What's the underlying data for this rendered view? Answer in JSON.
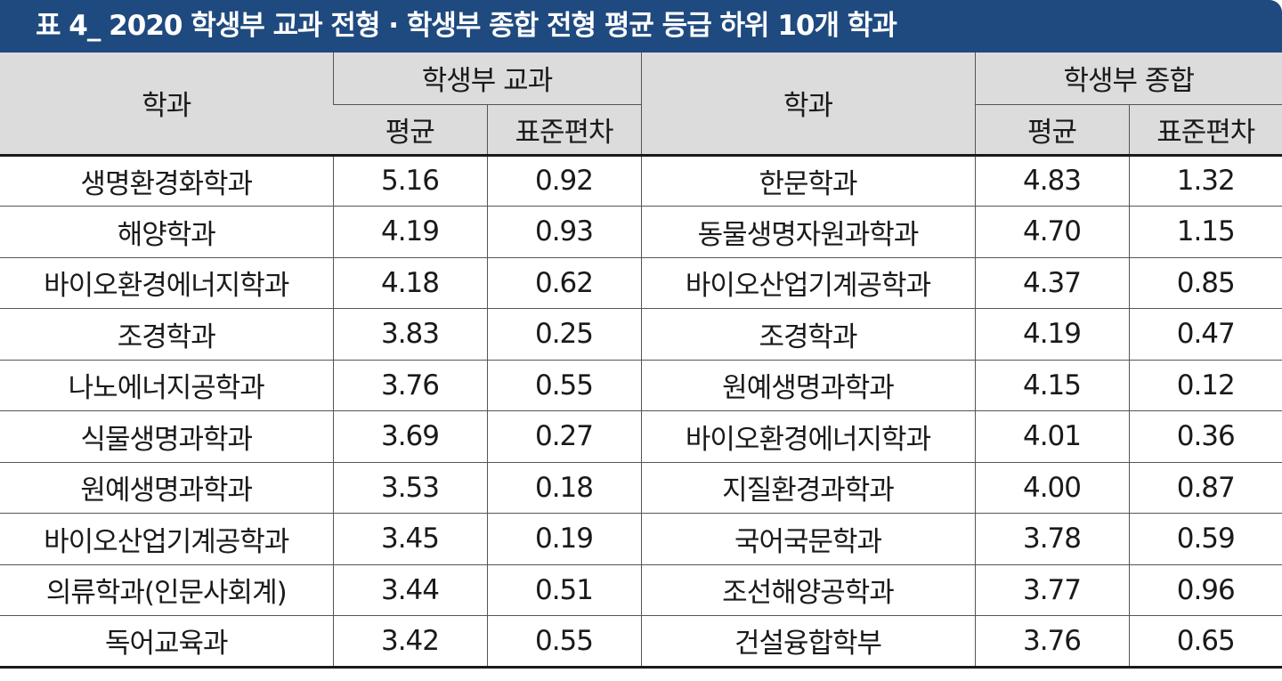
{
  "title": "표 4_ 2020 학생부 교과 전형 · 학생부 종합 전형 평균 등급 하위 10개 학과",
  "header": {
    "dept_left": "학과",
    "group_left": "학생부 교과",
    "dept_right": "학과",
    "group_right": "학생부 종합",
    "avg": "평균",
    "sd": "표준편차"
  },
  "rows": [
    {
      "dept1": "생명환경화학과",
      "avg1": "5.16",
      "sd1": "0.92",
      "dept2": "한문학과",
      "avg2": "4.83",
      "sd2": "1.32"
    },
    {
      "dept1": "해양학과",
      "avg1": "4.19",
      "sd1": "0.93",
      "dept2": "동물생명자원과학과",
      "avg2": "4.70",
      "sd2": "1.15"
    },
    {
      "dept1": "바이오환경에너지학과",
      "avg1": "4.18",
      "sd1": "0.62",
      "dept2": "바이오산업기계공학과",
      "avg2": "4.37",
      "sd2": "0.85"
    },
    {
      "dept1": "조경학과",
      "avg1": "3.83",
      "sd1": "0.25",
      "dept2": "조경학과",
      "avg2": "4.19",
      "sd2": "0.47"
    },
    {
      "dept1": "나노에너지공학과",
      "avg1": "3.76",
      "sd1": "0.55",
      "dept2": "원예생명과학과",
      "avg2": "4.15",
      "sd2": "0.12"
    },
    {
      "dept1": "식물생명과학과",
      "avg1": "3.69",
      "sd1": "0.27",
      "dept2": "바이오환경에너지학과",
      "avg2": "4.01",
      "sd2": "0.36"
    },
    {
      "dept1": "원예생명과학과",
      "avg1": "3.53",
      "sd1": "0.18",
      "dept2": "지질환경과학과",
      "avg2": "4.00",
      "sd2": "0.87"
    },
    {
      "dept1": "바이오산업기계공학과",
      "avg1": "3.45",
      "sd1": "0.19",
      "dept2": "국어국문학과",
      "avg2": "3.78",
      "sd2": "0.59"
    },
    {
      "dept1": "의류학과(인문사회계)",
      "avg1": "3.44",
      "sd1": "0.51",
      "dept2": "조선해양공학과",
      "avg2": "3.77",
      "sd2": "0.96"
    },
    {
      "dept1": "독어교육과",
      "avg1": "3.42",
      "sd1": "0.55",
      "dept2": "건설융합학부",
      "avg2": "3.76",
      "sd2": "0.65"
    }
  ]
}
